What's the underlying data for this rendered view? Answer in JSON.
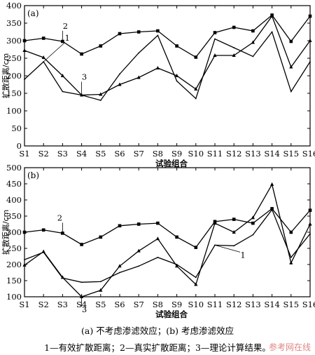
{
  "chart_data": [
    {
      "type": "line",
      "panel_label": "(a)",
      "categories": [
        "S1",
        "S2",
        "S3",
        "S4",
        "S5",
        "S6",
        "S7",
        "S8",
        "S9",
        "S10",
        "S11",
        "S12",
        "S13",
        "S14",
        "S15",
        "S16"
      ],
      "xlabel": "试验组合",
      "ylabel": "扩散距离/cm",
      "ylim": [
        0,
        400
      ],
      "yticks": [
        "0",
        "50",
        "100",
        "150",
        "200",
        "250",
        "300",
        "350",
        "400"
      ],
      "series": [
        {
          "name": "1",
          "marker": "none",
          "values": [
            190,
            240,
            155,
            145,
            130,
            205,
            265,
            315,
            185,
            135,
            305,
            280,
            255,
            325,
            155,
            240
          ]
        },
        {
          "name": "2",
          "marker": "square",
          "values": [
            300,
            307,
            298,
            262,
            285,
            320,
            325,
            328,
            285,
            253,
            323,
            338,
            328,
            373,
            298,
            370
          ]
        },
        {
          "name": "3",
          "marker": "tri",
          "values": [
            272,
            252,
            200,
            145,
            147,
            175,
            195,
            222,
            200,
            162,
            258,
            258,
            295,
            370,
            225,
            300
          ]
        }
      ]
    },
    {
      "type": "line",
      "panel_label": "(b)",
      "categories": [
        "S1",
        "S2",
        "S3",
        "S4",
        "S5",
        "S6",
        "S7",
        "S8",
        "S9",
        "S10",
        "S11",
        "S12",
        "S13",
        "S14",
        "S15",
        "S16"
      ],
      "xlabel": "试验组合",
      "ylabel": "扩散距离/cm",
      "ylim": [
        100,
        500
      ],
      "yticks": [
        "100",
        "150",
        "200",
        "250",
        "300",
        "350",
        "400",
        "450",
        "500"
      ],
      "series": [
        {
          "name": "1",
          "marker": "none",
          "values": [
            215,
            238,
            158,
            145,
            147,
            175,
            195,
            222,
            200,
            160,
            260,
            258,
            292,
            370,
            222,
            295
          ]
        },
        {
          "name": "2",
          "marker": "square",
          "values": [
            300,
            307,
            297,
            262,
            285,
            320,
            325,
            328,
            285,
            253,
            333,
            340,
            328,
            373,
            300,
            368
          ]
        },
        {
          "name": "3",
          "marker": "tri",
          "values": [
            198,
            240,
            160,
            100,
            120,
            195,
            242,
            280,
            195,
            138,
            328,
            300,
            345,
            448,
            205,
            325
          ]
        }
      ]
    }
  ],
  "captions": {
    "line1": "(a) 不考虑渗滤效应；(b) 考虑渗滤效应",
    "line2": "1—有效扩散距离；2—真实扩散距离；3—理论计算结果。"
  },
  "watermark": "参考网在线"
}
